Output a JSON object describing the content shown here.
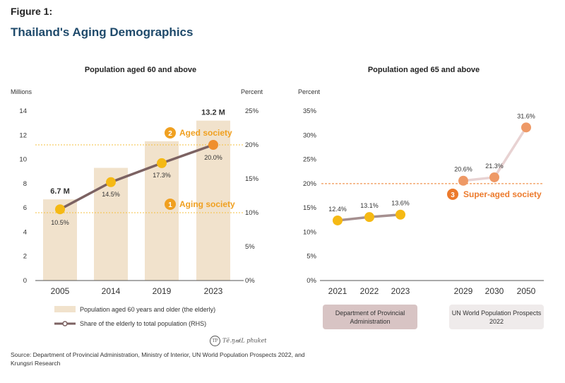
{
  "figure_label": "Figure 1:",
  "figure_title": "Thailand's Aging Demographics",
  "source_text": "Source: Department of Provincial Administration, Ministry of Interior, UN World Population Prospects 2022, and Krungsri Research",
  "watermark_text": "Tĕ.ŋ๗iL phuket",
  "colors": {
    "bar": "#f1e2cc",
    "line_left": "#7c6262",
    "marker_yellow": "#f5b914",
    "marker_orange": "#ef8f2d",
    "threshold_dotted": "#f5c040",
    "threshold_dashed": "#ee7d2b",
    "line_right_early": "#a58f8f",
    "line_right_late": "#e8d2d2",
    "marker_right_late": "#ee9966",
    "accent_label": "#f0a020",
    "super_aged": "#ec7a2c"
  },
  "chart_data": [
    {
      "type": "bar+line",
      "title": "Population aged 60 and above",
      "ylabel_left": "Millions",
      "ylabel_right": "Percent",
      "categories": [
        "2005",
        "2014",
        "2019",
        "2023"
      ],
      "ylim_left": [
        0,
        14
      ],
      "yticks_left": [
        "0",
        "2",
        "4",
        "6",
        "8",
        "10",
        "12",
        "14"
      ],
      "ylim_right": [
        0,
        25
      ],
      "yticks_right": [
        "0%",
        "5%",
        "10%",
        "15%",
        "20%",
        "25%"
      ],
      "series": [
        {
          "name": "Population aged 60 years and older (the elderly)",
          "type": "bar",
          "axis": "left",
          "values": [
            6.7,
            9.3,
            11.5,
            13.2
          ]
        },
        {
          "name": "Share of the elderly to total population (RHS)",
          "type": "line",
          "axis": "right",
          "values": [
            10.5,
            14.5,
            17.3,
            20.0
          ],
          "labels": [
            "10.5%",
            "14.5%",
            "17.3%",
            "20.0%"
          ]
        }
      ],
      "bar_annotations": [
        {
          "index": 0,
          "text": "6.7 M"
        },
        {
          "index": 3,
          "text": "13.2 M"
        }
      ],
      "thresholds": [
        {
          "value": 10,
          "number": "1",
          "label": "Aging society"
        },
        {
          "value": 20,
          "number": "2",
          "label": "Aged society"
        }
      ]
    },
    {
      "type": "line",
      "title": "Population aged 65 and above",
      "ylabel": "Percent",
      "ylim": [
        0,
        35
      ],
      "yticks": [
        "0%",
        "5%",
        "10%",
        "15%",
        "20%",
        "25%",
        "30%",
        "35%"
      ],
      "groups": [
        {
          "categories": [
            "2021",
            "2022",
            "2023"
          ],
          "values": [
            12.4,
            13.1,
            13.6
          ],
          "labels": [
            "12.4%",
            "13.1%",
            "13.6%"
          ],
          "source": "Department of Provincial Administration"
        },
        {
          "categories": [
            "2029",
            "2030",
            "2050"
          ],
          "values": [
            20.6,
            21.3,
            31.6
          ],
          "labels": [
            "20.6%",
            "21.3%",
            "31.6%"
          ],
          "source": "UN World Population Prospects 2022"
        }
      ],
      "threshold": {
        "value": 20,
        "number": "3",
        "label": "Super-aged society"
      }
    }
  ]
}
